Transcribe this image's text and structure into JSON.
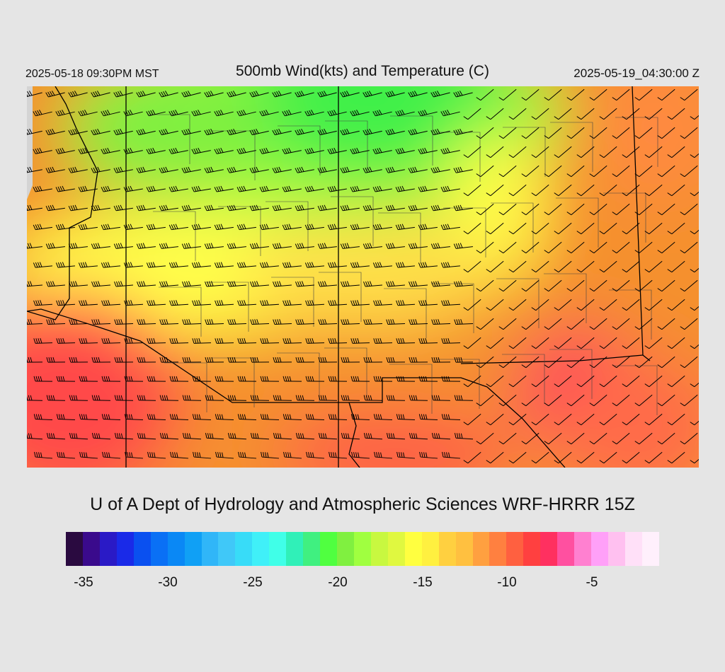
{
  "header": {
    "local_time": "2025-05-18 09:30PM MST",
    "title": "500mb Wind(kts) and Temperature (C)",
    "valid_time": "2025-05-19_04:30:00 Z"
  },
  "credit": "U of A Dept of Hydrology and Atmospheric Sciences WRF-HRRR 15Z",
  "colorbar": {
    "colors": [
      "#2a0a40",
      "#3a0a8c",
      "#2a1ac6",
      "#1a2ae8",
      "#0a50f0",
      "#0a70f5",
      "#0a88f5",
      "#10a0f5",
      "#30b6f8",
      "#40c8f8",
      "#38dcf8",
      "#40f0f8",
      "#40ffe8",
      "#30f0b8",
      "#40f080",
      "#50ff40",
      "#80f040",
      "#a0ff40",
      "#c8f840",
      "#e0f840",
      "#ffff40",
      "#fff040",
      "#ffd040",
      "#ffc040",
      "#ffa040",
      "#ff8040",
      "#ff6040",
      "#ff4040",
      "#ff3060",
      "#ff50a0",
      "#ff80d0",
      "#ffa0f8",
      "#ffc0f0",
      "#ffe0f8",
      "#fff0fc"
    ],
    "tick_labels": [
      "-35",
      "-30",
      "-25",
      "-20",
      "-15",
      "-10",
      "-5"
    ]
  },
  "map": {
    "region": "Southwestern United States",
    "colors": {
      "cold": "#40f048",
      "cool": "#a0f840",
      "mild": "#ffff48",
      "warm": "#f5902f",
      "hot": "#ff4a48",
      "hottest": "#ff2a70",
      "no_data": "#d4d4d4"
    },
    "barb_color": "#000000"
  }
}
